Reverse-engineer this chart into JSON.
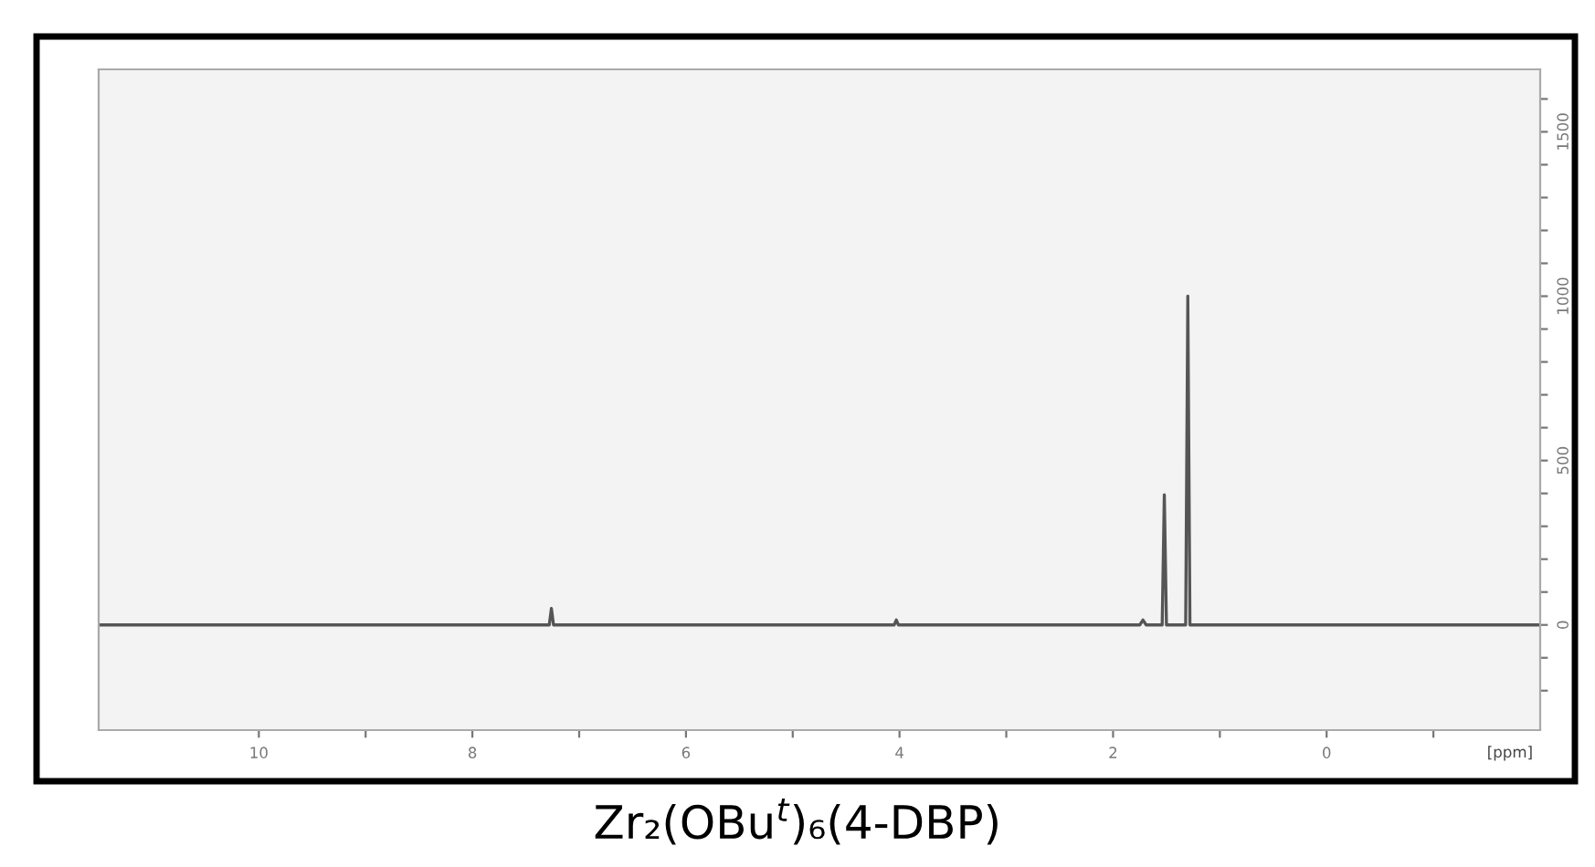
{
  "chart_data": {
    "type": "line",
    "title": "Zr₂(OBu$^{t}$)₆(4-DBP)",
    "xlabel": "[ppm]",
    "x": [
      11.5,
      7.4,
      7.28,
      7.26,
      7.24,
      4.05,
      4.03,
      4.01,
      1.75,
      1.72,
      1.69,
      1.54,
      1.52,
      1.5,
      1.32,
      1.3,
      1.28,
      -2
    ],
    "series": [
      {
        "color": "#555555",
        "values": [
          0,
          0,
          0,
          50,
          0,
          0,
          15,
          0,
          0,
          15,
          0,
          0,
          396,
          0,
          0,
          1000,
          0,
          0
        ]
      }
    ],
    "xlim": [
      11.5,
      -2
    ],
    "xticks": [
      10,
      {
        "value": 9,
        "label": null
      },
      8,
      {
        "value": 7,
        "label": null
      },
      6,
      {
        "value": 5,
        "label": null
      },
      4,
      {
        "value": 3,
        "label": null
      },
      2,
      {
        "value": 1,
        "label": null
      },
      0,
      {
        "value": -1,
        "label": null
      }
    ],
    "ylim": [
      -320,
      1690
    ],
    "yticks": [
      {
        "value": -200,
        "label": null
      },
      {
        "value": -100,
        "label": null
      },
      0,
      {
        "value": 100,
        "label": null
      },
      {
        "value": 200,
        "label": null
      },
      {
        "value": 300,
        "label": null
      },
      {
        "value": 400,
        "label": null
      },
      500,
      {
        "value": 600,
        "label": null
      },
      {
        "value": 700,
        "label": null
      },
      {
        "value": 800,
        "label": null
      },
      {
        "value": 900,
        "label": null
      },
      1000,
      {
        "value": 1100,
        "label": null
      },
      {
        "value": 1200,
        "label": null
      },
      {
        "value": 1300,
        "label": null
      },
      {
        "value": 1400,
        "label": null
      },
      1500,
      {
        "value": 1600,
        "label": null
      }
    ],
    "grid": false,
    "legend": false,
    "marker": "none",
    "line_style": "solid"
  }
}
